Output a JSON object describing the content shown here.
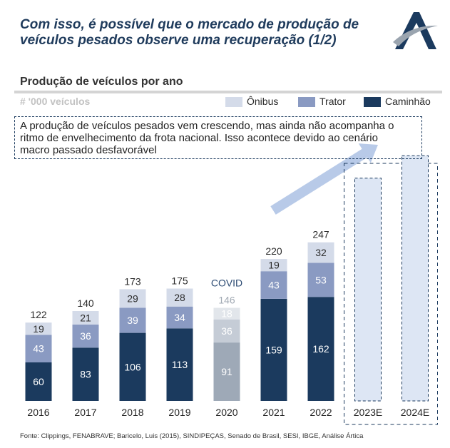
{
  "header": {
    "title_lines": [
      "Com isso, é possível que o mercado de produção de",
      "veículos pesados observe uma recuperação (1/2)"
    ]
  },
  "callout": {
    "lines": [
      "A produção de veículos pesados vem crescendo, mas ainda não acompanha o",
      "ritmo de envelhecimento da frota nacional. Isso acontece devido ao cenário",
      "macro passado desfavorável"
    ]
  },
  "chart_data": {
    "type": "bar",
    "stacked": true,
    "title": "Produção de veículos por ano",
    "xlabel": "",
    "ylabel": "# '000 veículos",
    "categories": [
      "2016",
      "2017",
      "2018",
      "2019",
      "2020",
      "2021",
      "2022",
      "2023E",
      "2024E"
    ],
    "series": [
      {
        "name": "Caminhão",
        "color": "#1b3a5e",
        "values": [
          60,
          83,
          106,
          113,
          91,
          159,
          162,
          null,
          null
        ]
      },
      {
        "name": "Trator",
        "color": "#8a9ac2",
        "values": [
          43,
          36,
          39,
          34,
          36,
          43,
          53,
          null,
          null
        ]
      },
      {
        "name": "Ônibus",
        "color": "#d4dbe9",
        "values": [
          19,
          21,
          29,
          28,
          18,
          19,
          32,
          null,
          null
        ]
      }
    ],
    "totals": [
      122,
      140,
      173,
      175,
      146,
      220,
      247,
      null,
      null
    ],
    "estimated_totals": [
      null,
      null,
      null,
      null,
      null,
      null,
      null,
      347,
      382
    ],
    "estimate_color": "#dde6f4",
    "muted_category": "2020",
    "muted_colors": [
      "#9ea9b7",
      "#c5ccd6",
      "#e2e6eb"
    ],
    "annotations": [
      {
        "category": "2020",
        "text": "COVID"
      }
    ],
    "legend": {
      "placement": "top-right"
    },
    "ylim": [
      0,
      400
    ],
    "grid": false
  },
  "footer": {
    "source": "Fonte: Clippings, FENABRAVE; Baricelo, Luis (2015), SINDIPEÇAS, Senado de Brasil, SESI, IBGE, Análise Ártica"
  }
}
